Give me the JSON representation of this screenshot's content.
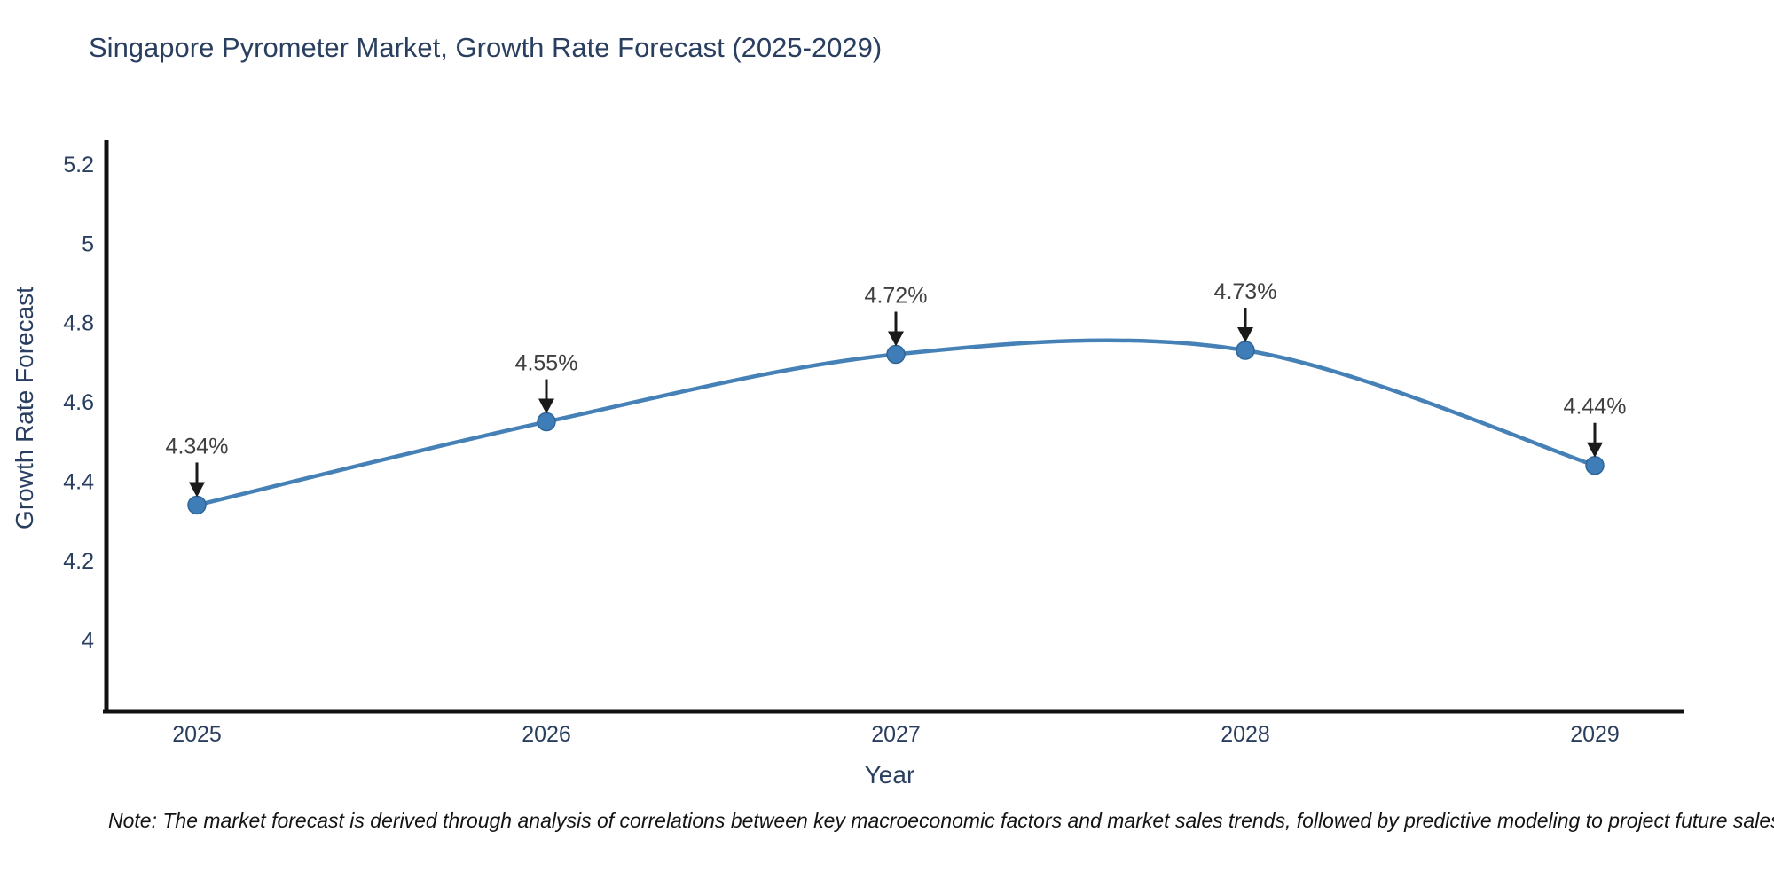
{
  "title": "Singapore Pyrometer Market, Growth Rate Forecast (2025-2029)",
  "footnote": "Note: The market forecast is derived through analysis of correlations between key macroeconomic factors and market sales trends, followed by predictive modeling to project future sales",
  "chart_data": {
    "type": "line",
    "title": "Singapore Pyrometer Market, Growth Rate Forecast (2025-2029)",
    "xlabel": "Year",
    "ylabel": "Growth Rate Forecast",
    "categories": [
      "2025",
      "2026",
      "2027",
      "2028",
      "2029"
    ],
    "series": [
      {
        "name": "Growth Rate Forecast",
        "values": [
          4.34,
          4.55,
          4.72,
          4.73,
          4.44
        ]
      }
    ],
    "point_labels": [
      "4.34%",
      "4.55%",
      "4.72%",
      "4.73%",
      "4.44%"
    ],
    "yticks": [
      4,
      4.2,
      4.4,
      4.6,
      4.8,
      5,
      5.2
    ],
    "ylim": [
      3.82,
      5.26
    ],
    "line_shape": "spline",
    "grid": false,
    "legend_position": "none",
    "colors": {
      "line": "#4580b6",
      "marker_fill": "#3f7db8",
      "marker_edge": "#2f6699",
      "arrow": "#1a1a1a",
      "axis_line": "#111111",
      "tick_text": "#2a3f5f",
      "annotation_text": "#404040",
      "title_text": "#2a3f5f"
    }
  }
}
